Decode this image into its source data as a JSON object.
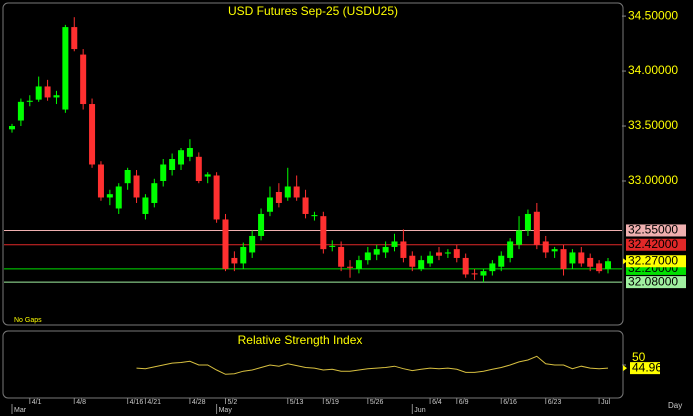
{
  "chart_data": {
    "type": "candlestick",
    "title": "USD Futures Sep-25 (USDU25)",
    "note": "No Gaps",
    "x_unit": "Day",
    "categories": [
      null,
      null,
      "4/1",
      null,
      null,
      null,
      null,
      "4/8",
      null,
      null,
      null,
      null,
      null,
      "4/16",
      null,
      "4/21",
      null,
      null,
      null,
      null,
      "4/28",
      null,
      null,
      null,
      "5/2",
      null,
      null,
      null,
      null,
      null,
      null,
      "5/13",
      null,
      null,
      null,
      "5/19",
      null,
      null,
      null,
      null,
      "5/26",
      null,
      null,
      null,
      null,
      null,
      null,
      "6/4",
      null,
      null,
      "6/9",
      null,
      null,
      null,
      null,
      "6/16",
      null,
      null,
      null,
      null,
      "6/23",
      null,
      null,
      null,
      null,
      null,
      "Jul",
      null
    ],
    "months": [
      "Mar",
      null,
      null,
      null,
      null,
      null,
      null,
      null,
      null,
      null,
      null,
      null,
      null,
      null,
      null,
      null,
      null,
      null,
      null,
      null,
      null,
      null,
      null,
      "May",
      null,
      null,
      null,
      null,
      null,
      null,
      null,
      null,
      null,
      null,
      null,
      null,
      null,
      null,
      null,
      null,
      null,
      null,
      null,
      null,
      null,
      "Jun",
      null,
      null,
      null,
      null,
      null,
      null,
      null,
      null,
      null,
      null,
      null,
      null,
      null,
      null,
      null,
      null,
      null,
      null,
      null,
      null,
      null,
      null
    ],
    "open": [
      33.47,
      33.55,
      33.72,
      33.74,
      33.86,
      33.76,
      33.65,
      34.4,
      34.15,
      33.7,
      33.15,
      32.85,
      32.75,
      32.98,
      33.05,
      32.7,
      32.8,
      33.0,
      33.1,
      33.15,
      33.22,
      33.22,
      33.04,
      33.05,
      32.65,
      32.3,
      32.25,
      32.35,
      32.5,
      32.72,
      32.9,
      32.85,
      32.95,
      32.85,
      32.68,
      32.68,
      32.4,
      32.4,
      32.22,
      32.2,
      32.28,
      32.33,
      32.35,
      32.4,
      32.45,
      32.32,
      32.2,
      32.25,
      32.35,
      32.34,
      32.38,
      32.3,
      32.16,
      32.14,
      32.18,
      32.22,
      32.3,
      32.42,
      32.55,
      32.72,
      32.45,
      32.36,
      32.38,
      32.25,
      32.35,
      32.3,
      32.25,
      32.2
    ],
    "high": [
      33.52,
      33.75,
      33.78,
      33.95,
      33.92,
      33.82,
      34.42,
      34.49,
      34.2,
      33.75,
      33.18,
      32.92,
      32.98,
      33.12,
      33.1,
      32.88,
      33.02,
      33.2,
      33.25,
      33.3,
      33.38,
      33.26,
      33.08,
      33.08,
      32.7,
      32.36,
      32.44,
      32.55,
      32.75,
      32.95,
      32.98,
      33.12,
      33.05,
      32.92,
      32.72,
      32.72,
      32.46,
      32.45,
      32.28,
      32.32,
      32.4,
      32.42,
      32.45,
      32.52,
      32.56,
      32.36,
      32.32,
      32.36,
      32.4,
      32.38,
      32.42,
      32.34,
      32.2,
      32.2,
      32.28,
      32.36,
      32.48,
      32.68,
      32.74,
      32.8,
      32.5,
      32.4,
      32.42,
      32.38,
      32.4,
      32.34,
      32.28,
      32.3
    ],
    "low": [
      33.44,
      33.5,
      33.68,
      33.72,
      33.73,
      33.7,
      33.62,
      34.18,
      33.65,
      33.12,
      32.82,
      32.78,
      32.7,
      32.92,
      32.8,
      32.65,
      32.76,
      32.95,
      33.05,
      33.1,
      33.18,
      32.98,
      32.98,
      32.62,
      32.18,
      32.18,
      32.2,
      32.3,
      32.46,
      32.68,
      32.76,
      32.82,
      32.82,
      32.66,
      32.64,
      32.34,
      32.36,
      32.18,
      32.12,
      32.16,
      32.24,
      32.28,
      32.3,
      32.36,
      32.26,
      32.18,
      32.18,
      32.22,
      32.28,
      32.3,
      32.26,
      32.12,
      32.1,
      32.08,
      32.14,
      32.18,
      32.26,
      32.38,
      32.5,
      32.38,
      32.3,
      32.3,
      32.14,
      32.2,
      32.22,
      32.18,
      32.16,
      32.16
    ],
    "close": [
      33.5,
      33.72,
      33.73,
      33.86,
      33.76,
      33.78,
      34.4,
      34.2,
      33.7,
      33.15,
      32.85,
      32.88,
      32.95,
      33.1,
      32.85,
      32.85,
      32.98,
      33.15,
      33.2,
      33.28,
      33.3,
      33.0,
      33.06,
      32.65,
      32.2,
      32.25,
      32.4,
      32.5,
      32.7,
      32.85,
      32.8,
      32.95,
      32.85,
      32.7,
      32.69,
      32.38,
      32.41,
      32.22,
      32.21,
      32.28,
      32.35,
      32.38,
      32.4,
      32.45,
      32.3,
      32.22,
      32.28,
      32.32,
      32.32,
      32.35,
      32.3,
      32.15,
      32.15,
      32.18,
      32.25,
      32.32,
      32.45,
      32.55,
      32.7,
      32.42,
      32.35,
      32.38,
      32.2,
      32.35,
      32.25,
      32.22,
      32.18,
      32.27
    ],
    "up_color": "#00ff00",
    "down_color": "#ff3030",
    "ylim": [
      31.69,
      34.61
    ],
    "yticks": [
      {
        "value": 34.5,
        "label": "34.50000"
      },
      {
        "value": 34.0,
        "label": "34.00000"
      },
      {
        "value": 33.5,
        "label": "33.50000"
      },
      {
        "value": 33.0,
        "label": "33.00000"
      }
    ],
    "levels": [
      {
        "value": 32.55,
        "label": "32.55000",
        "color": "#f0b0b0"
      },
      {
        "value": 32.42,
        "label": "32.42000",
        "color": "#e02828"
      },
      {
        "value": 32.2,
        "label": "32.20000",
        "color": "#00e000"
      },
      {
        "value": 32.08,
        "label": "32.08000",
        "color": "#a0f0a0"
      }
    ],
    "last": {
      "value": 32.27,
      "label": "32.27000",
      "color": "#ffff00"
    },
    "rsi": {
      "title": "Relative Strength Index",
      "color": "#d8c040",
      "values": [
        null,
        null,
        null,
        null,
        null,
        null,
        null,
        null,
        null,
        null,
        null,
        null,
        null,
        null,
        45,
        44,
        47,
        50,
        53,
        54,
        56,
        50,
        50,
        42,
        35,
        36,
        40,
        42,
        46,
        50,
        48,
        52,
        49,
        46,
        45,
        42,
        43,
        40,
        40,
        42,
        44,
        45,
        46,
        48,
        44,
        41,
        43,
        45,
        44,
        45,
        43,
        38,
        38,
        40,
        43,
        46,
        50,
        55,
        58,
        64,
        52,
        50,
        50,
        44,
        48,
        45,
        44,
        44.96
      ],
      "ylim": [
        0,
        100
      ],
      "yticks": [
        50
      ]
    }
  }
}
